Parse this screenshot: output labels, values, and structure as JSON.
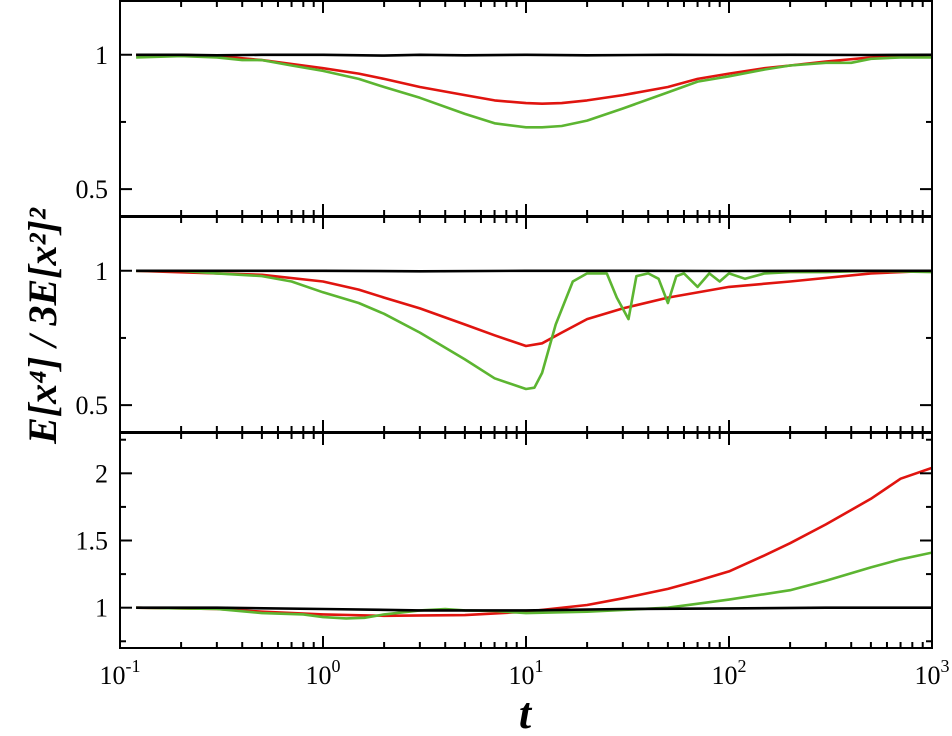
{
  "chart_data": {
    "type": "line",
    "xlabel": "t",
    "ylabel": "E[x⁴] / 3E[x²]²",
    "xscale": "log",
    "xlim": [
      0.1,
      1000
    ],
    "x_ticks": [
      {
        "value": 0.1,
        "base": "10",
        "exp": "-1"
      },
      {
        "value": 1,
        "base": "10",
        "exp": "0"
      },
      {
        "value": 10,
        "base": "10",
        "exp": "1"
      },
      {
        "value": 100,
        "base": "10",
        "exp": "2"
      },
      {
        "value": 1000,
        "base": "10",
        "exp": "3"
      }
    ],
    "colors": {
      "black": "#000000",
      "red": "#e0140f",
      "green": "#5cb531"
    },
    "panels": [
      {
        "ylim": [
          0.4,
          1.2
        ],
        "y_ticks": [
          {
            "value": 0.5,
            "label": "0.5"
          },
          {
            "value": 1,
            "label": "1"
          }
        ],
        "series": [
          {
            "color": "#000000",
            "x": [
              0.12,
              0.2,
              0.3,
              0.5,
              1,
              2,
              3,
              5,
              10,
              20,
              50,
              100,
              200,
              500,
              1000
            ],
            "values": [
              1.0,
              1.0,
              0.998,
              1.0,
              1.0,
              0.997,
              1.0,
              0.998,
              1.0,
              0.998,
              1.0,
              0.999,
              1.0,
              0.999,
              1.0
            ]
          },
          {
            "color": "#e0140f",
            "x": [
              0.12,
              0.2,
              0.3,
              0.5,
              0.8,
              1,
              1.5,
              2,
              3,
              5,
              7,
              10,
              12,
              15,
              20,
              30,
              50,
              70,
              100,
              150,
              200,
              300,
              500,
              700,
              1000
            ],
            "values": [
              1.0,
              1.0,
              0.995,
              0.98,
              0.96,
              0.95,
              0.93,
              0.91,
              0.88,
              0.85,
              0.83,
              0.82,
              0.818,
              0.82,
              0.83,
              0.85,
              0.88,
              0.91,
              0.93,
              0.95,
              0.96,
              0.975,
              0.99,
              0.995,
              1.0
            ]
          },
          {
            "color": "#5cb531",
            "x": [
              0.12,
              0.2,
              0.3,
              0.4,
              0.5,
              0.7,
              1,
              1.5,
              2,
              3,
              5,
              7,
              10,
              12,
              15,
              20,
              30,
              50,
              70,
              100,
              150,
              200,
              300,
              400,
              500,
              700,
              1000
            ],
            "values": [
              0.99,
              0.995,
              0.99,
              0.98,
              0.98,
              0.96,
              0.94,
              0.91,
              0.88,
              0.84,
              0.78,
              0.745,
              0.73,
              0.73,
              0.735,
              0.755,
              0.8,
              0.86,
              0.9,
              0.92,
              0.945,
              0.96,
              0.97,
              0.97,
              0.985,
              0.99,
              0.99
            ]
          }
        ]
      },
      {
        "ylim": [
          0.4,
          1.2
        ],
        "y_ticks": [
          {
            "value": 0.5,
            "label": "0.5"
          },
          {
            "value": 1,
            "label": "1"
          }
        ],
        "series": [
          {
            "color": "#000000",
            "x": [
              0.12,
              0.3,
              1,
              3,
              10,
              30,
              100,
              300,
              1000
            ],
            "values": [
              1.0,
              1.0,
              1.0,
              0.998,
              1.0,
              1.0,
              0.999,
              1.0,
              1.0
            ]
          },
          {
            "color": "#e0140f",
            "x": [
              0.12,
              0.3,
              0.5,
              1,
              1.5,
              2,
              3,
              5,
              7,
              10,
              12,
              15,
              20,
              30,
              50,
              100,
              200,
              500,
              1000
            ],
            "values": [
              1.0,
              0.99,
              0.985,
              0.96,
              0.93,
              0.9,
              0.86,
              0.8,
              0.76,
              0.72,
              0.73,
              0.77,
              0.82,
              0.86,
              0.9,
              0.94,
              0.96,
              0.99,
              1.0
            ]
          },
          {
            "color": "#5cb531",
            "x": [
              0.12,
              0.2,
              0.3,
              0.5,
              0.7,
              1,
              1.5,
              2,
              3,
              5,
              7,
              10,
              11,
              12,
              14,
              17,
              20,
              25,
              28,
              32,
              35,
              40,
              45,
              50,
              55,
              60,
              70,
              80,
              90,
              100,
              120,
              150,
              200,
              300,
              500,
              1000
            ],
            "values": [
              1.0,
              1.0,
              0.99,
              0.98,
              0.96,
              0.92,
              0.88,
              0.84,
              0.77,
              0.67,
              0.6,
              0.56,
              0.565,
              0.62,
              0.8,
              0.96,
              0.99,
              0.99,
              0.9,
              0.82,
              0.98,
              0.99,
              0.97,
              0.88,
              0.98,
              0.99,
              0.94,
              0.99,
              0.96,
              0.99,
              0.97,
              0.99,
              0.995,
              0.995,
              1.0,
              0.995
            ]
          }
        ]
      },
      {
        "ylim": [
          0.7,
          2.3
        ],
        "y_ticks": [
          {
            "value": 1,
            "label": "1"
          },
          {
            "value": 1.5,
            "label": "1.5"
          },
          {
            "value": 2,
            "label": "2"
          }
        ],
        "series": [
          {
            "color": "#000000",
            "x": [
              0.12,
              0.3,
              1,
              3,
              10,
              30,
              100,
              300,
              1000
            ],
            "values": [
              1.0,
              1.0,
              0.99,
              0.98,
              0.98,
              0.99,
              0.995,
              1.0,
              1.0
            ]
          },
          {
            "color": "#e0140f",
            "x": [
              0.12,
              0.3,
              0.5,
              1,
              2,
              5,
              10,
              20,
              30,
              50,
              70,
              100,
              150,
              200,
              300,
              500,
              700,
              1000
            ],
            "values": [
              1.0,
              0.99,
              0.97,
              0.95,
              0.94,
              0.945,
              0.97,
              1.02,
              1.07,
              1.14,
              1.2,
              1.27,
              1.39,
              1.48,
              1.62,
              1.81,
              1.96,
              2.04
            ]
          },
          {
            "color": "#5cb531",
            "x": [
              0.12,
              0.3,
              0.5,
              0.8,
              1,
              1.3,
              1.6,
              2,
              3,
              4,
              5,
              7,
              10,
              20,
              50,
              100,
              200,
              300,
              500,
              700,
              1000
            ],
            "values": [
              1.0,
              0.99,
              0.96,
              0.95,
              0.93,
              0.92,
              0.925,
              0.95,
              0.98,
              0.99,
              0.98,
              0.975,
              0.96,
              0.97,
              1.0,
              1.06,
              1.13,
              1.2,
              1.3,
              1.36,
              1.41
            ]
          }
        ]
      }
    ]
  }
}
